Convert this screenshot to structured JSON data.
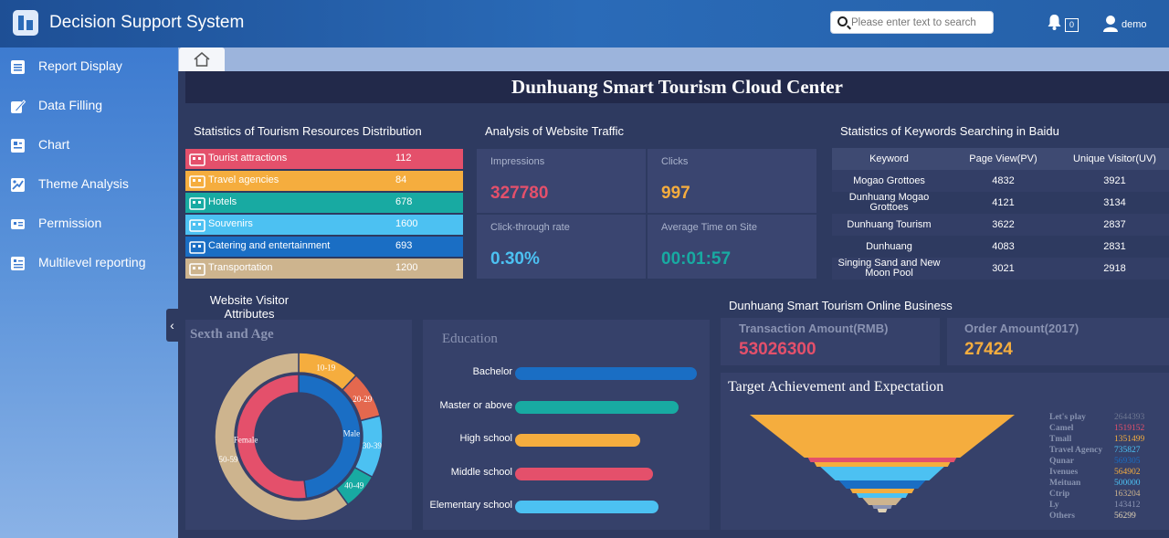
{
  "app": {
    "title": "Decision Support System"
  },
  "header": {
    "search_placeholder": "Please enter text to search",
    "notification_count": "0",
    "username": "demo"
  },
  "sidebar": {
    "items": [
      {
        "label": "Report Display",
        "icon": "report-icon"
      },
      {
        "label": "Data Filling",
        "icon": "pen-icon"
      },
      {
        "label": "Chart",
        "icon": "chart-icon"
      },
      {
        "label": "Theme Analysis",
        "icon": "theme-icon"
      },
      {
        "label": "Permission",
        "icon": "permission-icon"
      },
      {
        "label": "Multilevel reporting",
        "icon": "multilevel-icon"
      }
    ]
  },
  "dashboard": {
    "title": "Dunhuang Smart Tourism Cloud Center"
  },
  "resources": {
    "title": "Statistics of Tourism Resources Distribution",
    "items": [
      {
        "label": "Tourist attractions",
        "value": "112",
        "color": "#e4506b"
      },
      {
        "label": "Travel agencies",
        "value": "84",
        "color": "#f5ad3e"
      },
      {
        "label": "Hotels",
        "value": "678",
        "color": "#18aaa2"
      },
      {
        "label": "Souvenirs",
        "value": "1600",
        "color": "#4cc1f2"
      },
      {
        "label": "Catering and entertainment",
        "value": "693",
        "color": "#1a6ec4"
      },
      {
        "label": "Transportation",
        "value": "1200",
        "color": "#cdb48e"
      }
    ]
  },
  "traffic": {
    "title": "Analysis of Website Traffic",
    "metrics": [
      {
        "label": "Impressions",
        "value": "327780",
        "color": "#e4506b"
      },
      {
        "label": "Clicks",
        "value": "997",
        "color": "#f5ad3e"
      },
      {
        "label": "Click-through rate",
        "value": "0.30%",
        "color": "#4cc1f2"
      },
      {
        "label": "Average Time on Site",
        "value": "00:01:57",
        "color": "#18aaa2"
      }
    ]
  },
  "keywords": {
    "title": "Statistics of Keywords Searching in Baidu",
    "columns": [
      "Keyword",
      "Page View(PV)",
      "Unique Visitor(UV)"
    ],
    "rows": [
      [
        "Mogao Grottoes",
        "4832",
        "3921"
      ],
      [
        "Dunhuang Mogao Grottoes",
        "4121",
        "3134"
      ],
      [
        "Dunhuang Tourism",
        "3622",
        "2837"
      ],
      [
        "Dunhuang",
        "4083",
        "2831"
      ],
      [
        "Singing Sand and New Moon Pool",
        "3021",
        "2918"
      ]
    ]
  },
  "visitor": {
    "title": "Website Visitor Attributes",
    "donut_title": "Sexth and Age"
  },
  "education": {
    "title": "Education"
  },
  "business": {
    "title": "Dunhuang Smart Tourism Online Business",
    "transaction_label": "Transaction Amount(RMB)",
    "transaction_value": "53026300",
    "order_label": "Order Amount(2017)",
    "order_value": "27424",
    "target_title": "Target Achievement and Expectation"
  },
  "chart_data": [
    {
      "type": "pie",
      "title": "Sexth and Age",
      "rings": [
        {
          "name": "gender",
          "labels": [
            "Male",
            "Female"
          ],
          "values": [
            48,
            52
          ],
          "colors": [
            "#1a6ec4",
            "#e4506b"
          ]
        },
        {
          "name": "age",
          "labels": [
            "10-19",
            "20-29",
            "30-39",
            "40-49",
            "50-59"
          ],
          "values": [
            12,
            9,
            12,
            7,
            60
          ],
          "colors": [
            "#f5ad3e",
            "#e4684e",
            "#4cc1f2",
            "#18aaa2",
            "#cdb48e"
          ]
        }
      ]
    },
    {
      "type": "bar",
      "title": "Education",
      "categories": [
        "Bachelor",
        "Master or above",
        "High school",
        "Middle school",
        "Elementary school"
      ],
      "values": [
        100,
        90,
        69,
        76,
        79
      ],
      "colors": [
        "#1a6ec4",
        "#18aaa2",
        "#f5ad3e",
        "#e4506b",
        "#4cc1f2"
      ]
    },
    {
      "type": "funnel",
      "title": "Target Achievement and Expectation",
      "categories": [
        "Let's play",
        "Camel",
        "Tmall",
        "Travel Agency",
        "Qunar",
        "Ivenues",
        "Meituan",
        "Ctrip",
        "Ly",
        "Others"
      ],
      "values": [
        2644393,
        1519152,
        1351499,
        735827,
        569305,
        564902,
        500000,
        163204,
        143412,
        56299
      ],
      "colors": [
        "#f5ad3e",
        "#e4506b",
        "#f5ad3e",
        "#4cc1f2",
        "#1a6ec4",
        "#f5ad3e",
        "#4cc1f2",
        "#cdb48e",
        "#8a93b2",
        "#e0d2b6"
      ]
    }
  ]
}
